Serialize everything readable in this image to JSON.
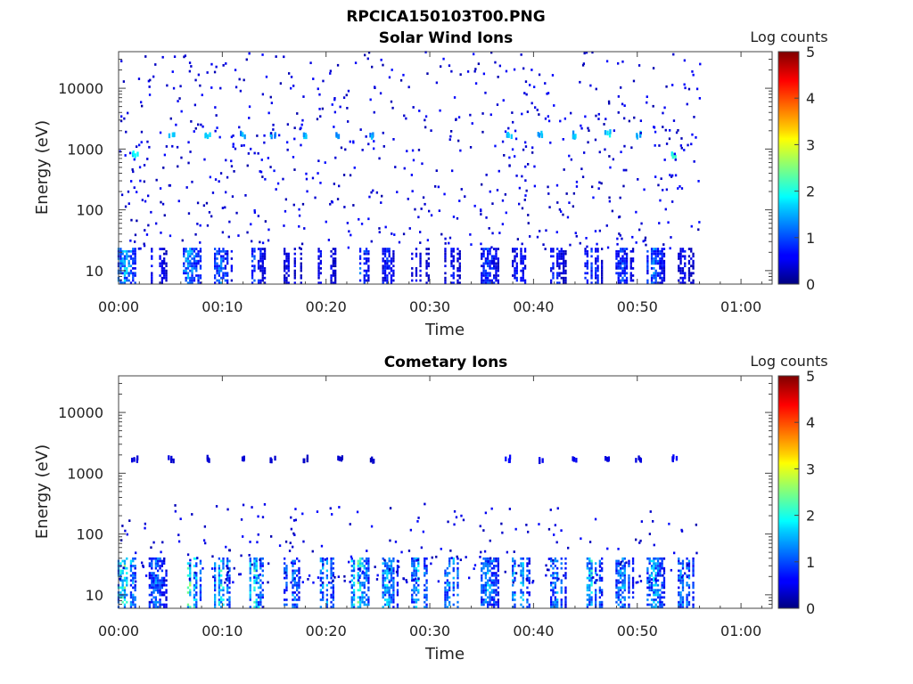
{
  "figure_title": "RPCICA150103T00.PNG",
  "chart_data": [
    {
      "type": "heatmap",
      "title": "Solar Wind Ions",
      "xlabel": "Time",
      "ylabel": "Energy (eV)",
      "x_ticks": [
        "00:00",
        "00:10",
        "00:20",
        "00:30",
        "00:40",
        "00:50",
        "01:00"
      ],
      "x_range_minutes": [
        0,
        63
      ],
      "data_end_minute": 56,
      "y_ticks": [
        "10",
        "100",
        "1000",
        "10000"
      ],
      "y_scale": "log",
      "y_range_eV": [
        6,
        40000
      ],
      "colorbar": {
        "label": "Log counts",
        "ticks": [
          "0",
          "1",
          "2",
          "3",
          "4",
          "5"
        ],
        "range": [
          0,
          5
        ],
        "colormap": "jet"
      },
      "low_energy_bursts": [
        {
          "t": 0.5,
          "peak": 2.0
        },
        {
          "t": 3.5,
          "peak": 1.0
        },
        {
          "t": 6.8,
          "peak": 1.9
        },
        {
          "t": 9.8,
          "peak": 1.5
        },
        {
          "t": 13.0,
          "peak": 1.2
        },
        {
          "t": 16.5,
          "peak": 0.8
        },
        {
          "t": 19.8,
          "peak": 1.0
        },
        {
          "t": 23.0,
          "peak": 1.6
        },
        {
          "t": 25.8,
          "peak": 1.0
        },
        {
          "t": 28.8,
          "peak": 0.8
        },
        {
          "t": 32.0,
          "peak": 0.9
        },
        {
          "t": 35.5,
          "peak": 1.2
        },
        {
          "t": 38.5,
          "peak": 1.0
        },
        {
          "t": 42.0,
          "peak": 1.0
        },
        {
          "t": 45.5,
          "peak": 1.2
        },
        {
          "t": 48.5,
          "peak": 1.2
        },
        {
          "t": 51.5,
          "peak": 1.5
        },
        {
          "t": 54.5,
          "peak": 0.8
        }
      ],
      "high_energy_patches": [
        {
          "t": 1.5,
          "e": 800,
          "v": 2.0
        },
        {
          "t": 5.0,
          "e": 1800,
          "v": 1.8
        },
        {
          "t": 8.5,
          "e": 1700,
          "v": 1.7
        },
        {
          "t": 11.8,
          "e": 1700,
          "v": 1.7
        },
        {
          "t": 14.8,
          "e": 1700,
          "v": 1.6
        },
        {
          "t": 18.0,
          "e": 1700,
          "v": 1.7
        },
        {
          "t": 21.2,
          "e": 1700,
          "v": 1.6
        },
        {
          "t": 24.2,
          "e": 1700,
          "v": 1.6
        },
        {
          "t": 37.5,
          "e": 1700,
          "v": 1.8
        },
        {
          "t": 40.5,
          "e": 1700,
          "v": 1.7
        },
        {
          "t": 43.8,
          "e": 1700,
          "v": 1.8
        },
        {
          "t": 47.0,
          "e": 1800,
          "v": 2.0
        },
        {
          "t": 50.0,
          "e": 1700,
          "v": 1.7
        },
        {
          "t": 53.5,
          "e": 800,
          "v": 2.2
        }
      ]
    },
    {
      "type": "heatmap",
      "title": "Cometary Ions",
      "xlabel": "Time",
      "ylabel": "Energy (eV)",
      "x_ticks": [
        "00:00",
        "00:10",
        "00:20",
        "00:30",
        "00:40",
        "00:50",
        "01:00"
      ],
      "x_range_minutes": [
        0,
        63
      ],
      "data_end_minute": 56,
      "y_ticks": [
        "10",
        "100",
        "1000",
        "10000"
      ],
      "y_scale": "log",
      "y_range_eV": [
        6,
        40000
      ],
      "colorbar": {
        "label": "Log counts",
        "ticks": [
          "0",
          "1",
          "2",
          "3",
          "4",
          "5"
        ],
        "range": [
          0,
          5
        ],
        "colormap": "jet"
      },
      "low_energy_bursts": [
        {
          "t": 0.5,
          "peak": 2.6
        },
        {
          "t": 3.5,
          "peak": 1.5
        },
        {
          "t": 6.8,
          "peak": 2.8
        },
        {
          "t": 9.8,
          "peak": 2.3
        },
        {
          "t": 13.0,
          "peak": 2.4
        },
        {
          "t": 16.5,
          "peak": 1.8
        },
        {
          "t": 19.8,
          "peak": 2.0
        },
        {
          "t": 23.0,
          "peak": 2.6
        },
        {
          "t": 25.8,
          "peak": 2.0
        },
        {
          "t": 28.8,
          "peak": 2.0
        },
        {
          "t": 32.0,
          "peak": 1.9
        },
        {
          "t": 35.5,
          "peak": 1.8
        },
        {
          "t": 38.5,
          "peak": 2.2
        },
        {
          "t": 42.0,
          "peak": 1.8
        },
        {
          "t": 45.5,
          "peak": 2.2
        },
        {
          "t": 48.5,
          "peak": 1.8
        },
        {
          "t": 51.5,
          "peak": 2.0
        },
        {
          "t": 54.5,
          "peak": 1.9
        }
      ],
      "high_energy_patches": [
        {
          "t": 1.5,
          "e": 1700,
          "v": 0.5
        },
        {
          "t": 5.0,
          "e": 1700,
          "v": 0.5
        },
        {
          "t": 8.5,
          "e": 1700,
          "v": 0.5
        },
        {
          "t": 11.8,
          "e": 1700,
          "v": 0.5
        },
        {
          "t": 14.8,
          "e": 1700,
          "v": 0.5
        },
        {
          "t": 18.0,
          "e": 1700,
          "v": 0.4
        },
        {
          "t": 21.2,
          "e": 1700,
          "v": 0.4
        },
        {
          "t": 24.2,
          "e": 1700,
          "v": 0.4
        },
        {
          "t": 37.5,
          "e": 1700,
          "v": 0.8
        },
        {
          "t": 40.5,
          "e": 1700,
          "v": 0.6
        },
        {
          "t": 43.8,
          "e": 1700,
          "v": 0.6
        },
        {
          "t": 47.0,
          "e": 1700,
          "v": 0.5
        },
        {
          "t": 50.0,
          "e": 1700,
          "v": 0.5
        },
        {
          "t": 53.5,
          "e": 1700,
          "v": 0.7
        }
      ]
    }
  ]
}
